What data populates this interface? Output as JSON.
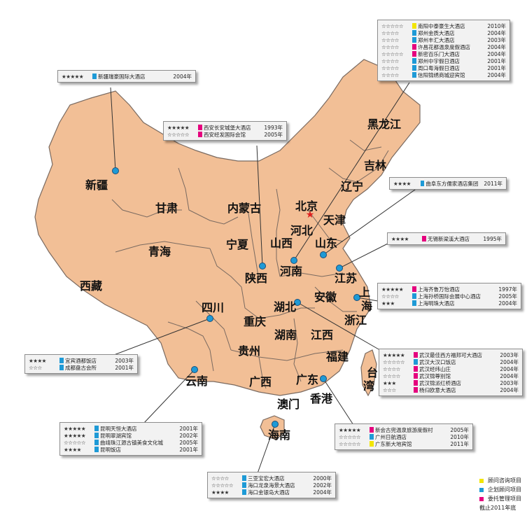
{
  "colors": {
    "land": "#f2bf96",
    "border": "#7a6a60",
    "leader": "#333333",
    "marker": "#1e9ad6",
    "capital": "#e02020",
    "consulting": "#f2e500",
    "planning": "#1e9ad6",
    "management": "#e5007e"
  },
  "capital_label": "北京",
  "provinces": {
    "xinjiang": "新疆",
    "xizang": "西藏",
    "qinghai": "青海",
    "gansu": "甘肃",
    "neimenggu": "内蒙古",
    "ningxia": "宁夏",
    "shaanxi": "陕西",
    "shanxi": "山西",
    "hebei": "河北",
    "tianjin": "天津",
    "liaoning": "辽宁",
    "jilin": "吉林",
    "heilongjiang": "黑龙江",
    "shandong": "山东",
    "henan": "河南",
    "jiangsu": "江苏",
    "shanghai_1": "上",
    "shanghai_2": "海",
    "anhui": "安徽",
    "hubei": "湖北",
    "zhejiang": "浙江",
    "sichuan": "四川",
    "chongqing": "重庆",
    "guizhou": "贵州",
    "hunan": "湖南",
    "jiangxi": "江西",
    "fujian": "福建",
    "taiwan_1": "台",
    "taiwan_2": "湾",
    "yunnan": "云南",
    "guangxi": "广西",
    "guangdong": "广东",
    "xianggang": "香港",
    "aomen": "澳门",
    "hainan": "海南"
  },
  "callouts": {
    "xinjiang": {
      "entries": [
        {
          "stars": "★★★★★",
          "type": "planning",
          "name": "新疆瑞豪国际大酒店",
          "year": "2004年"
        }
      ]
    },
    "xian": {
      "entries": [
        {
          "stars": "★★★★★",
          "type": "management",
          "name": "西安长安城堡大酒店",
          "year": "1993年"
        },
        {
          "stars": "☆☆☆☆☆",
          "type": "management",
          "name": "西安经发国际会馆",
          "year": "2005年"
        }
      ]
    },
    "henan": {
      "entries": [
        {
          "stars": "☆☆☆☆☆",
          "type": "consulting",
          "name": "南阳中泰豪生大酒店",
          "year": "2010年"
        },
        {
          "stars": "☆☆☆☆",
          "type": "planning",
          "name": "郑州金质大酒店",
          "year": "2004年"
        },
        {
          "stars": "☆☆☆☆",
          "type": "planning",
          "name": "郑州丰汇大酒店",
          "year": "2003年"
        },
        {
          "stars": "☆☆☆☆",
          "type": "management",
          "name": "许昌花都温泉度假酒店",
          "year": "2004年"
        },
        {
          "stars": "☆☆☆☆☆",
          "type": "management",
          "name": "新密百乐门大酒店",
          "year": "2004年"
        },
        {
          "stars": "☆☆☆☆",
          "type": "planning",
          "name": "郑州中宇假日酒店",
          "year": "2001年"
        },
        {
          "stars": "☆☆☆☆",
          "type": "planning",
          "name": "周口粤海假日酒店",
          "year": "2001年"
        },
        {
          "stars": "☆☆☆☆",
          "type": "planning",
          "name": "信阳锦绣商城迎宾馆",
          "year": "2004年"
        }
      ]
    },
    "shandong": {
      "entries": [
        {
          "stars": "★★★★",
          "type": "planning",
          "name": "曲阜东方儒家酒店集团",
          "year": "2011年"
        }
      ]
    },
    "wuxi": {
      "entries": [
        {
          "stars": "★★★★",
          "type": "management",
          "name": "无锡新梁溪大酒店",
          "year": "1995年"
        }
      ]
    },
    "shanghai": {
      "entries": [
        {
          "stars": "★★★★★",
          "type": "management",
          "name": "上海齐鲁万怡酒店",
          "year": "1997年"
        },
        {
          "stars": "☆☆☆☆",
          "type": "planning",
          "name": "上海孙桥国际会展中心酒店",
          "year": "2005年"
        },
        {
          "stars": "★★★",
          "type": "planning",
          "name": "上海明珠大酒店",
          "year": "2004年"
        }
      ]
    },
    "wuhan": {
      "entries": [
        {
          "stars": "★★★★★",
          "type": "management",
          "name": "武汉最佳西方福邦可大酒店",
          "year": "2003年"
        },
        {
          "stars": "☆☆☆☆☆",
          "type": "planning",
          "name": "武汉大汉口饭店",
          "year": "2004年"
        },
        {
          "stars": "☆☆☆☆",
          "type": "management",
          "name": "武汉经纬山庄",
          "year": "2004年"
        },
        {
          "stars": "☆☆☆☆",
          "type": "management",
          "name": "武汉锦尊别馆",
          "year": "2004年"
        },
        {
          "stars": "★★★",
          "type": "management",
          "name": "武汉锦派红桥酒店",
          "year": "2003年"
        },
        {
          "stars": "☆☆☆",
          "type": "management",
          "name": "杨归欧意大酒店",
          "year": "2004年"
        }
      ]
    },
    "sichuan": {
      "entries": [
        {
          "stars": "★★★★",
          "type": "planning",
          "name": "宜宾酒都饭店",
          "year": "2003年"
        },
        {
          "stars": "☆☆☆",
          "type": "planning",
          "name": "成都盘古会所",
          "year": "2001年"
        }
      ]
    },
    "yunnan": {
      "entries": [
        {
          "stars": "★★★★★",
          "type": "planning",
          "name": "昆明天恒大酒店",
          "year": "2001年"
        },
        {
          "stars": "★★★★★",
          "type": "planning",
          "name": "昆明翠湖宾馆",
          "year": "2002年"
        },
        {
          "stars": "☆☆☆☆☆",
          "type": "planning",
          "name": "曲靖珠江源古镇美食文化城",
          "year": "2005年"
        },
        {
          "stars": "★★★★",
          "type": "planning",
          "name": "昆明饭店",
          "year": "2001年"
        }
      ]
    },
    "hainan": {
      "entries": [
        {
          "stars": "☆☆☆☆",
          "type": "planning",
          "name": "三亚宝宏大酒店",
          "year": "2000年"
        },
        {
          "stars": "☆☆☆☆☆",
          "type": "planning",
          "name": "海口龙泉海景大酒店",
          "year": "2002年"
        },
        {
          "stars": "★★★★",
          "type": "planning",
          "name": "海口金银岛大酒店",
          "year": "2004年"
        }
      ]
    },
    "guangdong": {
      "entries": [
        {
          "stars": "★★★★★",
          "type": "management",
          "name": "新会古兜温泉旅游度假村",
          "year": "2005年"
        },
        {
          "stars": "☆☆☆☆☆",
          "type": "planning",
          "name": "广州日航酒店",
          "year": "2010年"
        },
        {
          "stars": "☆☆☆☆☆",
          "type": "consulting",
          "name": "广东新大地宾馆",
          "year": "2011年"
        }
      ]
    }
  },
  "legend": {
    "items": [
      {
        "type": "consulting",
        "label": "顾问咨询项目"
      },
      {
        "type": "planning",
        "label": "企划顾问项目"
      },
      {
        "type": "management",
        "label": "委托管理项目"
      }
    ],
    "note": "截止2011年底"
  }
}
